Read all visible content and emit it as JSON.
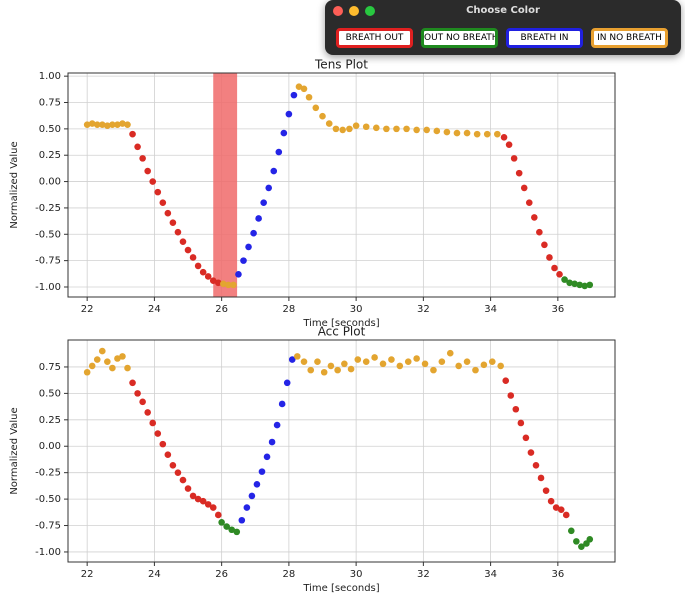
{
  "window": {
    "title": "Choose Color",
    "buttons": [
      {
        "label": "BREATH OUT",
        "color": "#e02020"
      },
      {
        "label": "OUT NO BREATH",
        "color": "#1f8a1f"
      },
      {
        "label": "BREATH IN",
        "color": "#2020e0"
      },
      {
        "label": "IN NO BREATH",
        "color": "#e8a030"
      }
    ]
  },
  "chart_data": [
    {
      "type": "scatter",
      "title": "Tens Plot",
      "x_label": "Time [seconds]",
      "y_label": "Normalized Value",
      "grid": true,
      "xlim": [
        21.43,
        37.7
      ],
      "xticks": [
        22,
        24,
        26,
        28,
        30,
        32,
        34,
        36
      ],
      "ylim": [
        -1.095,
        1.03
      ],
      "yticks": [
        {
          "value": -1,
          "label": "-1.00"
        },
        {
          "value": -0.75,
          "label": "-0.75"
        },
        {
          "value": -0.5,
          "label": "-0.50"
        },
        {
          "value": -0.25,
          "label": "-0.25"
        },
        {
          "value": 0,
          "label": "0.00"
        },
        {
          "value": 0.25,
          "label": "0.25"
        },
        {
          "value": 0.5,
          "label": "0.50"
        },
        {
          "value": 0.75,
          "label": "0.75"
        },
        {
          "value": 1,
          "label": "1.00"
        }
      ],
      "span": {
        "x": [
          25.75,
          26.46
        ],
        "color": "#f06a6a"
      },
      "series": [
        {
          "color": "#e3a530",
          "x": [
            22.0,
            22.15,
            22.3,
            22.45,
            22.6,
            22.75,
            22.9,
            23.05,
            23.2
          ],
          "values": [
            0.54,
            0.55,
            0.54,
            0.54,
            0.53,
            0.54,
            0.54,
            0.55,
            0.54
          ]
        },
        {
          "color": "#d92b24",
          "x": [
            23.35,
            23.5,
            23.65,
            23.8,
            23.95,
            24.1,
            24.25,
            24.4,
            24.55,
            24.7,
            24.85,
            25.0,
            25.15,
            25.3,
            25.45,
            25.6,
            25.75,
            25.9
          ],
          "values": [
            0.45,
            0.33,
            0.22,
            0.1,
            0.0,
            -0.1,
            -0.2,
            -0.3,
            -0.39,
            -0.48,
            -0.57,
            -0.65,
            -0.72,
            -0.8,
            -0.86,
            -0.9,
            -0.94,
            -0.96
          ]
        },
        {
          "color": "#e3a530",
          "x": [
            26.05,
            26.2,
            26.35
          ],
          "values": [
            -0.97,
            -0.98,
            -0.98
          ]
        },
        {
          "color": "#2424e6",
          "x": [
            26.5,
            26.65,
            26.8,
            26.95,
            27.1,
            27.25,
            27.4,
            27.55,
            27.7,
            27.85,
            28.0,
            28.15
          ],
          "values": [
            -0.88,
            -0.75,
            -0.62,
            -0.49,
            -0.35,
            -0.2,
            -0.06,
            0.1,
            0.28,
            0.46,
            0.64,
            0.82
          ]
        },
        {
          "color": "#e3a530",
          "x": [
            28.3,
            28.45,
            28.6,
            28.8,
            29.0,
            29.2,
            29.4,
            29.6,
            29.8,
            30.0,
            30.3,
            30.6,
            30.9,
            31.2,
            31.5,
            31.8,
            32.1,
            32.4,
            32.7,
            33.0,
            33.3,
            33.6,
            33.9,
            34.2
          ],
          "values": [
            0.9,
            0.88,
            0.8,
            0.7,
            0.62,
            0.55,
            0.5,
            0.49,
            0.5,
            0.53,
            0.52,
            0.51,
            0.5,
            0.5,
            0.5,
            0.49,
            0.49,
            0.48,
            0.47,
            0.46,
            0.46,
            0.45,
            0.45,
            0.45
          ]
        },
        {
          "color": "#d92b24",
          "x": [
            34.4,
            34.55,
            34.7,
            34.85,
            35.0,
            35.15,
            35.3,
            35.45,
            35.6,
            35.75,
            35.9,
            36.05
          ],
          "values": [
            0.42,
            0.35,
            0.22,
            0.08,
            -0.06,
            -0.2,
            -0.34,
            -0.48,
            -0.6,
            -0.72,
            -0.82,
            -0.88
          ]
        },
        {
          "color": "#2f8a24",
          "x": [
            36.2,
            36.35,
            36.5,
            36.65,
            36.8,
            36.95
          ],
          "values": [
            -0.93,
            -0.96,
            -0.97,
            -0.98,
            -0.99,
            -0.98
          ]
        }
      ]
    },
    {
      "type": "scatter",
      "title": "Acc Plot",
      "x_label": "Time [seconds]",
      "y_label": "Normalized Value",
      "grid": true,
      "xlim": [
        21.43,
        37.7
      ],
      "xticks": [
        22,
        24,
        26,
        28,
        30,
        32,
        34,
        36
      ],
      "ylim": [
        -1.095,
        1.005
      ],
      "yticks": [
        {
          "value": -1,
          "label": "-1.00"
        },
        {
          "value": -0.75,
          "label": "-0.75"
        },
        {
          "value": -0.5,
          "label": "-0.50"
        },
        {
          "value": -0.25,
          "label": "-0.25"
        },
        {
          "value": 0,
          "label": "0.00"
        },
        {
          "value": 0.25,
          "label": "0.25"
        },
        {
          "value": 0.5,
          "label": "0.50"
        },
        {
          "value": 0.75,
          "label": "0.75"
        }
      ],
      "series": [
        {
          "color": "#e3a530",
          "x": [
            22.0,
            22.15,
            22.3,
            22.45,
            22.6,
            22.75,
            22.9,
            23.05,
            23.2
          ],
          "values": [
            0.7,
            0.76,
            0.82,
            0.9,
            0.8,
            0.74,
            0.83,
            0.85,
            0.74
          ]
        },
        {
          "color": "#d92b24",
          "x": [
            23.35,
            23.5,
            23.65,
            23.8,
            23.95,
            24.1,
            24.25,
            24.4,
            24.55,
            24.7,
            24.85,
            25.0,
            25.15,
            25.3,
            25.45,
            25.6,
            25.75,
            25.9
          ],
          "values": [
            0.6,
            0.5,
            0.42,
            0.32,
            0.22,
            0.12,
            0.02,
            -0.08,
            -0.18,
            -0.25,
            -0.32,
            -0.4,
            -0.47,
            -0.5,
            -0.52,
            -0.55,
            -0.58,
            -0.65
          ]
        },
        {
          "color": "#2f8a24",
          "x": [
            26.0,
            26.15,
            26.3,
            26.45
          ],
          "values": [
            -0.72,
            -0.76,
            -0.79,
            -0.81
          ]
        },
        {
          "color": "#2424e6",
          "x": [
            26.6,
            26.75,
            26.9,
            27.05,
            27.2,
            27.35,
            27.5,
            27.65,
            27.8,
            27.95,
            28.1
          ],
          "values": [
            -0.7,
            -0.58,
            -0.47,
            -0.36,
            -0.24,
            -0.1,
            0.04,
            0.2,
            0.4,
            0.6,
            0.82
          ]
        },
        {
          "color": "#e3a530",
          "x": [
            28.25,
            28.45,
            28.65,
            28.85,
            29.05,
            29.25,
            29.45,
            29.65,
            29.85,
            30.05,
            30.3,
            30.55,
            30.8,
            31.05,
            31.3,
            31.55,
            31.8,
            32.05,
            32.3,
            32.55,
            32.8,
            33.05,
            33.3,
            33.55,
            33.8,
            34.05,
            34.3
          ],
          "values": [
            0.85,
            0.8,
            0.72,
            0.8,
            0.7,
            0.76,
            0.72,
            0.78,
            0.73,
            0.82,
            0.8,
            0.84,
            0.78,
            0.82,
            0.76,
            0.8,
            0.83,
            0.78,
            0.72,
            0.8,
            0.88,
            0.76,
            0.8,
            0.72,
            0.77,
            0.8,
            0.76
          ]
        },
        {
          "color": "#d92b24",
          "x": [
            34.45,
            34.6,
            34.75,
            34.9,
            35.05,
            35.2,
            35.35,
            35.5,
            35.65,
            35.8,
            35.95,
            36.1,
            36.25
          ],
          "values": [
            0.62,
            0.48,
            0.35,
            0.22,
            0.08,
            -0.06,
            -0.18,
            -0.3,
            -0.42,
            -0.52,
            -0.58,
            -0.6,
            -0.65
          ]
        },
        {
          "color": "#2f8a24",
          "x": [
            36.4,
            36.55,
            36.7,
            36.85,
            36.95
          ],
          "values": [
            -0.8,
            -0.9,
            -0.95,
            -0.92,
            -0.88
          ]
        }
      ]
    }
  ]
}
